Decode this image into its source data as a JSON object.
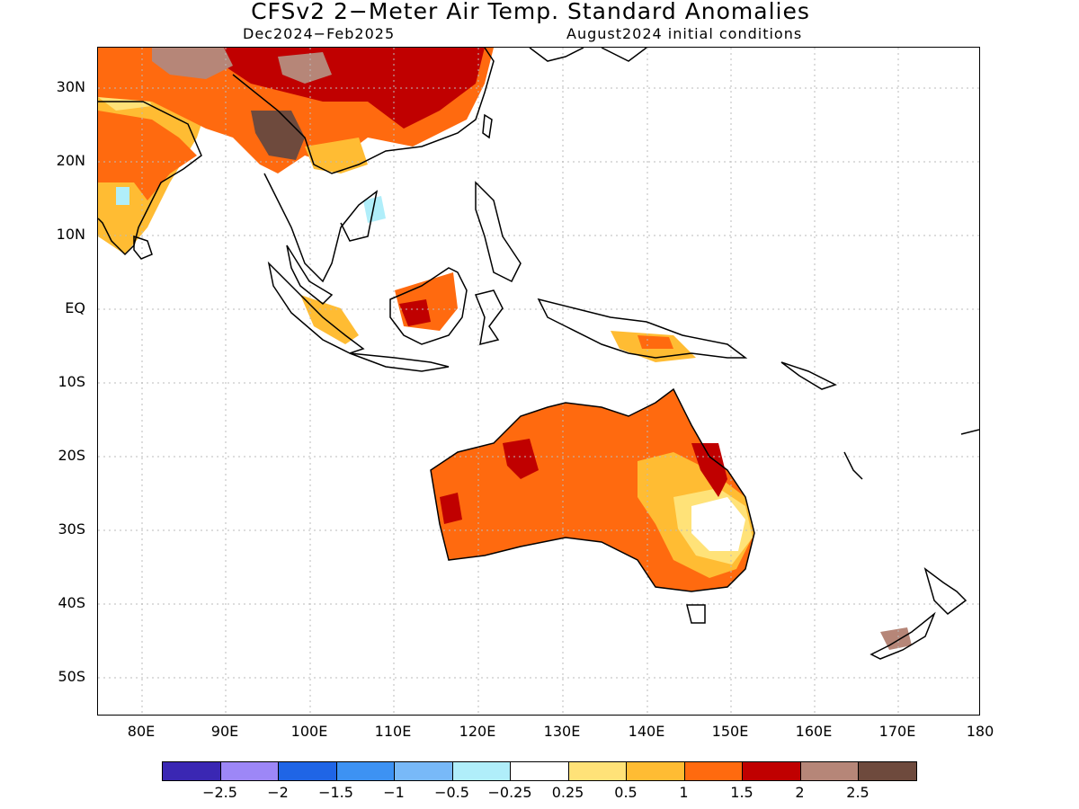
{
  "title": "CFSv2 2−Meter Air Temp. Standard Anomalies",
  "subtitle_left": "Dec2024−Feb2025",
  "subtitle_right": "August2024 initial conditions",
  "lat_labels": [
    "30N",
    "20N",
    "10N",
    "EQ",
    "10S",
    "20S",
    "30S",
    "40S",
    "50S"
  ],
  "lon_labels": [
    "80E",
    "90E",
    "100E",
    "110E",
    "120E",
    "130E",
    "140E",
    "150E",
    "160E",
    "170E",
    "180"
  ],
  "colorbar": {
    "colors": [
      "#3a27b3",
      "#9d87f7",
      "#1f65e6",
      "#3d92f3",
      "#78b9f8",
      "#b0eefa",
      "#ffffff",
      "#ffe278",
      "#ffbc33",
      "#ff6a0f",
      "#c00000",
      "#b68678",
      "#6e4a3d"
    ],
    "labels": [
      "−2.5",
      "−2",
      "−1.5",
      "−1",
      "−0.5",
      "−0.25",
      "0.25",
      "0.5",
      "1",
      "1.5",
      "2",
      "2.5"
    ]
  },
  "colors": {
    "coastline": "#000000",
    "grid": "#bbbbbb"
  }
}
